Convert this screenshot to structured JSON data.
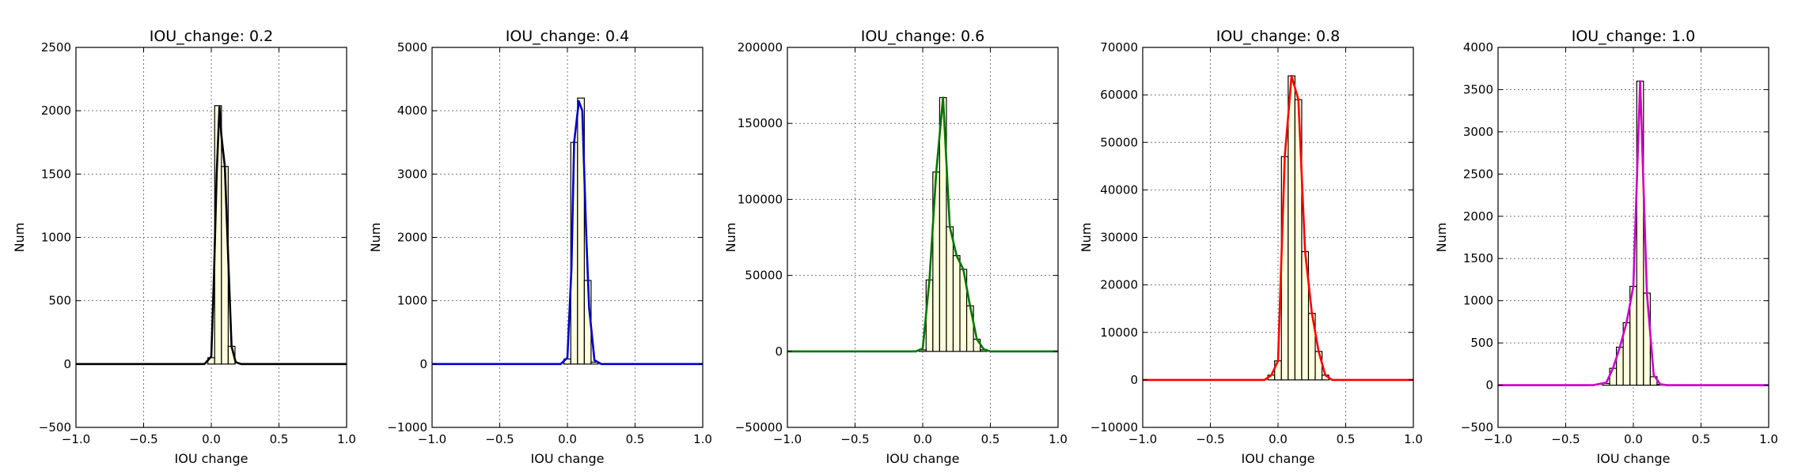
{
  "chart_data": [
    {
      "type": "bar",
      "title": "IOU_change: 0.2",
      "xlabel": "IOU change",
      "ylabel": "Num",
      "xlim": [
        -1.0,
        1.0
      ],
      "ylim": [
        -500,
        2500
      ],
      "xticks": [
        "-1.0",
        "-0.5",
        "0.0",
        "0.5",
        "1.0"
      ],
      "yticks": [
        "-500",
        "0",
        "500",
        "1000",
        "1500",
        "2000",
        "2500"
      ],
      "grid": true,
      "line_color": "#000000",
      "bar_color": "#ffffdd",
      "bin_width": 0.05,
      "bars": [
        {
          "x": 0.0,
          "value": 50
        },
        {
          "x": 0.05,
          "value": 2040
        },
        {
          "x": 0.1,
          "value": 1560
        },
        {
          "x": 0.15,
          "value": 140
        }
      ],
      "curve": [
        [
          -1.0,
          0
        ],
        [
          -0.05,
          0
        ],
        [
          0.0,
          60
        ],
        [
          0.02,
          700
        ],
        [
          0.04,
          1500
        ],
        [
          0.06,
          2030
        ],
        [
          0.075,
          1800
        ],
        [
          0.1,
          1560
        ],
        [
          0.13,
          700
        ],
        [
          0.15,
          140
        ],
        [
          0.18,
          15
        ],
        [
          0.22,
          0
        ],
        [
          1.0,
          0
        ]
      ]
    },
    {
      "type": "bar",
      "title": "IOU_change: 0.4",
      "xlabel": "IOU change",
      "ylabel": "Num",
      "xlim": [
        -1.0,
        1.0
      ],
      "ylim": [
        -1000,
        5000
      ],
      "xticks": [
        "-1.0",
        "-0.5",
        "0.0",
        "0.5",
        "1.0"
      ],
      "yticks": [
        "-1000",
        "0",
        "1000",
        "2000",
        "3000",
        "4000",
        "5000"
      ],
      "grid": true,
      "line_color": "#0000cc",
      "bar_color": "#ffffdd",
      "bin_width": 0.05,
      "bars": [
        {
          "x": 0.0,
          "value": 80
        },
        {
          "x": 0.05,
          "value": 3500
        },
        {
          "x": 0.1,
          "value": 4200
        },
        {
          "x": 0.15,
          "value": 1320
        },
        {
          "x": 0.2,
          "value": 30
        }
      ],
      "curve": [
        [
          -1.0,
          0
        ],
        [
          -0.05,
          0
        ],
        [
          0.0,
          100
        ],
        [
          0.03,
          1500
        ],
        [
          0.05,
          3500
        ],
        [
          0.085,
          4150
        ],
        [
          0.11,
          4000
        ],
        [
          0.14,
          2000
        ],
        [
          0.16,
          900
        ],
        [
          0.2,
          60
        ],
        [
          0.25,
          0
        ],
        [
          1.0,
          0
        ]
      ]
    },
    {
      "type": "bar",
      "title": "IOU_change: 0.6",
      "xlabel": "IOU change",
      "ylabel": "Num",
      "xlim": [
        -1.0,
        1.0
      ],
      "ylim": [
        -50000,
        200000
      ],
      "xticks": [
        "-1.0",
        "-0.5",
        "0.0",
        "0.5",
        "1.0"
      ],
      "yticks": [
        "-50000",
        "0",
        "50000",
        "100000",
        "150000",
        "200000"
      ],
      "grid": true,
      "line_color": "#007700",
      "bar_color": "#ffffdd",
      "bin_width": 0.05,
      "bars": [
        {
          "x": 0.0,
          "value": 1000
        },
        {
          "x": 0.05,
          "value": 47000
        },
        {
          "x": 0.1,
          "value": 118000
        },
        {
          "x": 0.15,
          "value": 167000
        },
        {
          "x": 0.2,
          "value": 82000
        },
        {
          "x": 0.25,
          "value": 63000
        },
        {
          "x": 0.3,
          "value": 54000
        },
        {
          "x": 0.35,
          "value": 30000
        },
        {
          "x": 0.4,
          "value": 8000
        },
        {
          "x": 0.45,
          "value": 1000
        }
      ],
      "curve": [
        [
          -1.0,
          0
        ],
        [
          -0.05,
          0
        ],
        [
          0.0,
          2000
        ],
        [
          0.05,
          47000
        ],
        [
          0.1,
          118000
        ],
        [
          0.15,
          167000
        ],
        [
          0.2,
          82000
        ],
        [
          0.25,
          63000
        ],
        [
          0.3,
          54000
        ],
        [
          0.35,
          30000
        ],
        [
          0.4,
          8000
        ],
        [
          0.45,
          1500
        ],
        [
          0.5,
          0
        ],
        [
          1.0,
          0
        ]
      ]
    },
    {
      "type": "bar",
      "title": "IOU_change: 0.8",
      "xlabel": "IOU change",
      "ylabel": "Num",
      "xlim": [
        -1.0,
        1.0
      ],
      "ylim": [
        -10000,
        70000
      ],
      "xticks": [
        "-1.0",
        "-0.5",
        "0.0",
        "0.5",
        "1.0"
      ],
      "yticks": [
        "-10000",
        "0",
        "10000",
        "20000",
        "30000",
        "40000",
        "50000",
        "60000",
        "70000"
      ],
      "grid": true,
      "line_color": "#ff0000",
      "bar_color": "#ffffdd",
      "bin_width": 0.05,
      "bars": [
        {
          "x": -0.05,
          "value": 1000
        },
        {
          "x": 0.0,
          "value": 4000
        },
        {
          "x": 0.05,
          "value": 47000
        },
        {
          "x": 0.1,
          "value": 64000
        },
        {
          "x": 0.15,
          "value": 59000
        },
        {
          "x": 0.2,
          "value": 27000
        },
        {
          "x": 0.25,
          "value": 14000
        },
        {
          "x": 0.3,
          "value": 6000
        },
        {
          "x": 0.35,
          "value": 1000
        }
      ],
      "curve": [
        [
          -1.0,
          0
        ],
        [
          -0.1,
          0
        ],
        [
          -0.05,
          1000
        ],
        [
          0.0,
          4000
        ],
        [
          0.05,
          47000
        ],
        [
          0.1,
          64000
        ],
        [
          0.15,
          59000
        ],
        [
          0.2,
          27000
        ],
        [
          0.25,
          14000
        ],
        [
          0.3,
          6000
        ],
        [
          0.35,
          1000
        ],
        [
          0.4,
          0
        ],
        [
          1.0,
          0
        ]
      ]
    },
    {
      "type": "bar",
      "title": "IOU_change: 1.0",
      "xlabel": "IOU change",
      "ylabel": "Num",
      "xlim": [
        -1.0,
        1.0
      ],
      "ylim": [
        -500,
        4000
      ],
      "xticks": [
        "-1.0",
        "-0.5",
        "0.0",
        "0.5",
        "1.0"
      ],
      "yticks": [
        "-500",
        "0",
        "500",
        "1000",
        "1500",
        "2000",
        "2500",
        "3000",
        "3500",
        "4000"
      ],
      "grid": true,
      "line_color": "#cc00cc",
      "bar_color": "#ffffdd",
      "bin_width": 0.05,
      "bars": [
        {
          "x": -0.2,
          "value": 20
        },
        {
          "x": -0.15,
          "value": 200
        },
        {
          "x": -0.1,
          "value": 450
        },
        {
          "x": -0.05,
          "value": 740
        },
        {
          "x": 0.0,
          "value": 1170
        },
        {
          "x": 0.05,
          "value": 3600
        },
        {
          "x": 0.1,
          "value": 1090
        },
        {
          "x": 0.15,
          "value": 100
        },
        {
          "x": 0.2,
          "value": 10
        }
      ],
      "curve": [
        [
          -1.0,
          0
        ],
        [
          -0.3,
          0
        ],
        [
          -0.2,
          30
        ],
        [
          -0.15,
          200
        ],
        [
          -0.1,
          450
        ],
        [
          -0.05,
          740
        ],
        [
          0.0,
          1170
        ],
        [
          0.05,
          3600
        ],
        [
          0.1,
          1090
        ],
        [
          0.15,
          120
        ],
        [
          0.2,
          10
        ],
        [
          0.25,
          0
        ],
        [
          1.0,
          0
        ]
      ]
    }
  ]
}
